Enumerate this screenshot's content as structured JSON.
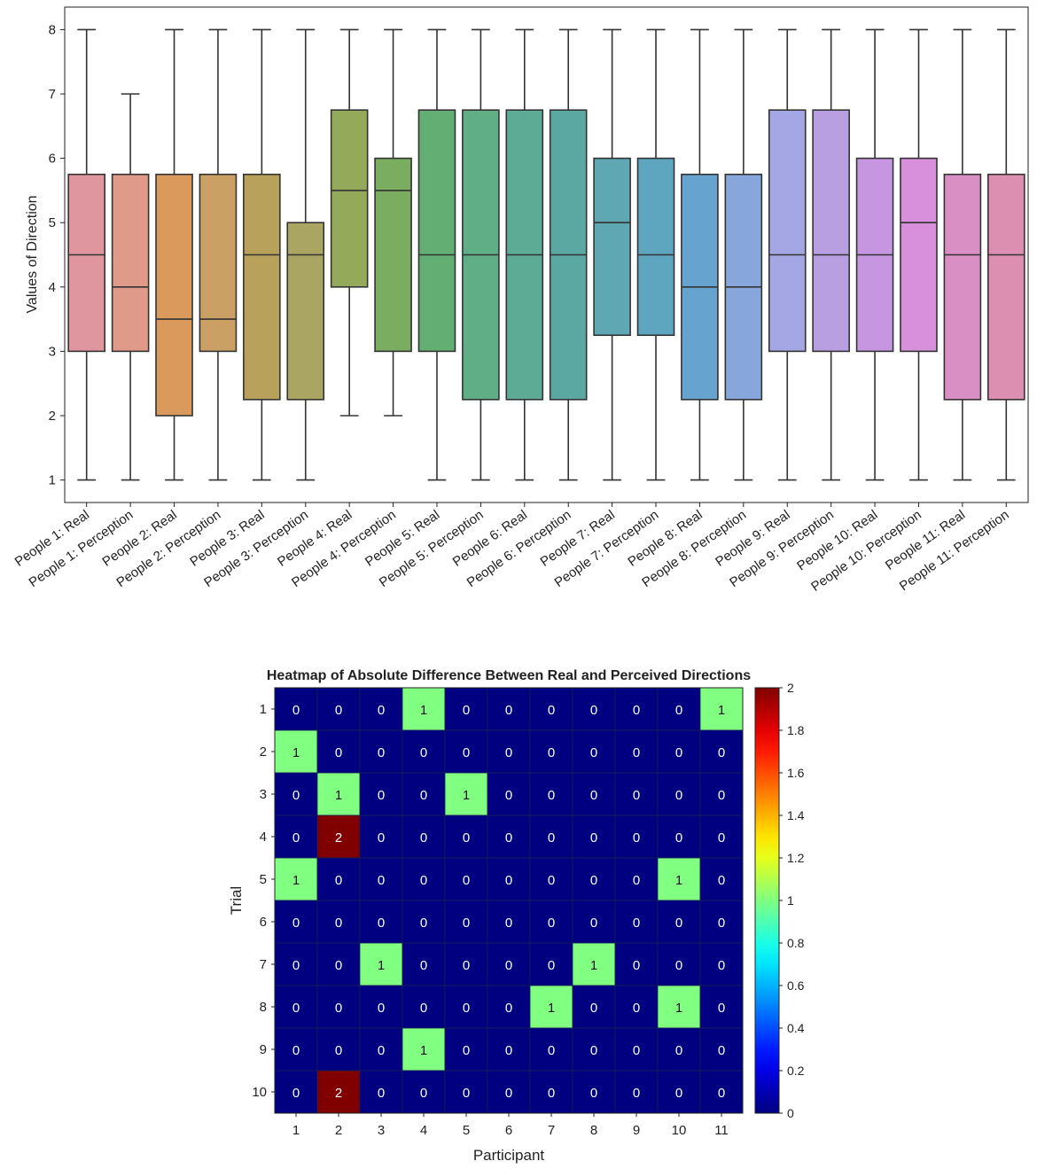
{
  "chart_data": [
    {
      "type": "box",
      "title": "",
      "xlabel": "",
      "ylabel": "Values of Direction",
      "ylim": [
        0.65,
        8.35
      ],
      "yticks": [
        1,
        2,
        3,
        4,
        5,
        6,
        7,
        8
      ],
      "categories": [
        "People 1: Real",
        "People 1: Perception",
        "People 2: Real",
        "People 2: Perception",
        "People 3: Real",
        "People 3: Perception",
        "People 4: Real",
        "People 4: Perception",
        "People 5: Real",
        "People 5: Perception",
        "People 6: Real",
        "People 6: Perception",
        "People 7: Real",
        "People 7: Perception",
        "People 8: Real",
        "People 8: Perception",
        "People 9: Real",
        "People 9: Perception",
        "People 10: Real",
        "People 10: Perception",
        "People 11: Real",
        "People 11: Perception"
      ],
      "boxes": [
        {
          "min": 1,
          "q1": 3,
          "median": 4.5,
          "q3": 5.75,
          "max": 8,
          "color": "#e0969f"
        },
        {
          "min": 1,
          "q1": 3,
          "median": 4,
          "q3": 5.75,
          "max": 7,
          "color": "#e09a8a"
        },
        {
          "min": 1,
          "q1": 2,
          "median": 3.5,
          "q3": 5.75,
          "max": 8,
          "color": "#d99a5c"
        },
        {
          "min": 1,
          "q1": 3,
          "median": 3.5,
          "q3": 5.75,
          "max": 8,
          "color": "#cba064"
        },
        {
          "min": 1,
          "q1": 2.25,
          "median": 4.5,
          "q3": 5.75,
          "max": 8,
          "color": "#b8a15a"
        },
        {
          "min": 1,
          "q1": 2.25,
          "median": 4.5,
          "q3": 5,
          "max": 8,
          "color": "#aaa562"
        },
        {
          "min": 2,
          "q1": 4,
          "median": 5.5,
          "q3": 6.75,
          "max": 8,
          "color": "#95a95a"
        },
        {
          "min": 2,
          "q1": 3,
          "median": 5.5,
          "q3": 6,
          "max": 8,
          "color": "#7aad5f"
        },
        {
          "min": 1,
          "q1": 3,
          "median": 4.5,
          "q3": 6.75,
          "max": 8,
          "color": "#63ae72"
        },
        {
          "min": 1,
          "q1": 2.25,
          "median": 4.5,
          "q3": 6.75,
          "max": 8,
          "color": "#5fae86"
        },
        {
          "min": 1,
          "q1": 2.25,
          "median": 4.5,
          "q3": 6.75,
          "max": 8,
          "color": "#5dab95"
        },
        {
          "min": 1,
          "q1": 2.25,
          "median": 4.5,
          "q3": 6.75,
          "max": 8,
          "color": "#5ba8a3"
        },
        {
          "min": 1,
          "q1": 3.25,
          "median": 5,
          "q3": 6,
          "max": 8,
          "color": "#5ea7b3"
        },
        {
          "min": 1,
          "q1": 3.25,
          "median": 4.5,
          "q3": 6,
          "max": 8,
          "color": "#5ea6c0"
        },
        {
          "min": 1,
          "q1": 2.25,
          "median": 4,
          "q3": 5.75,
          "max": 8,
          "color": "#66a3cf"
        },
        {
          "min": 1,
          "q1": 2.25,
          "median": 4,
          "q3": 5.75,
          "max": 8,
          "color": "#86a6dc"
        },
        {
          "min": 1,
          "q1": 3,
          "median": 4.5,
          "q3": 6.75,
          "max": 8,
          "color": "#a4a7e3"
        },
        {
          "min": 1,
          "q1": 3,
          "median": 4.5,
          "q3": 6.75,
          "max": 8,
          "color": "#b79fe2"
        },
        {
          "min": 1,
          "q1": 3,
          "median": 4.5,
          "q3": 6,
          "max": 8,
          "color": "#c697e0"
        },
        {
          "min": 1,
          "q1": 3,
          "median": 5,
          "q3": 6,
          "max": 8,
          "color": "#d88fdc"
        },
        {
          "min": 1,
          "q1": 2.25,
          "median": 4.5,
          "q3": 5.75,
          "max": 8,
          "color": "#d98ec4"
        },
        {
          "min": 1,
          "q1": 2.25,
          "median": 4.5,
          "q3": 5.75,
          "max": 8,
          "color": "#dc8fb0"
        }
      ]
    },
    {
      "type": "heatmap",
      "title": "Heatmap of Absolute Difference Between Real and Perceived Directions",
      "xlabel": "Participant",
      "ylabel": "Trial",
      "x": [
        1,
        2,
        3,
        4,
        5,
        6,
        7,
        8,
        9,
        10,
        11
      ],
      "y": [
        1,
        2,
        3,
        4,
        5,
        6,
        7,
        8,
        9,
        10
      ],
      "values": [
        [
          0,
          0,
          0,
          1,
          0,
          0,
          0,
          0,
          0,
          0,
          1
        ],
        [
          1,
          0,
          0,
          0,
          0,
          0,
          0,
          0,
          0,
          0,
          0
        ],
        [
          0,
          1,
          0,
          0,
          1,
          0,
          0,
          0,
          0,
          0,
          0
        ],
        [
          0,
          2,
          0,
          0,
          0,
          0,
          0,
          0,
          0,
          0,
          0
        ],
        [
          1,
          0,
          0,
          0,
          0,
          0,
          0,
          0,
          0,
          1,
          0
        ],
        [
          0,
          0,
          0,
          0,
          0,
          0,
          0,
          0,
          0,
          0,
          0
        ],
        [
          0,
          0,
          1,
          0,
          0,
          0,
          0,
          1,
          0,
          0,
          0
        ],
        [
          0,
          0,
          0,
          0,
          0,
          0,
          1,
          0,
          0,
          1,
          0
        ],
        [
          0,
          0,
          0,
          1,
          0,
          0,
          0,
          0,
          0,
          0,
          0
        ],
        [
          0,
          2,
          0,
          0,
          0,
          0,
          0,
          0,
          0,
          0,
          0
        ]
      ],
      "colormap": "jet",
      "clim": [
        0,
        2
      ],
      "colorbar_ticks": [
        "0",
        "0.2",
        "0.4",
        "0.6",
        "0.8",
        "1",
        "1.2",
        "1.4",
        "1.6",
        "1.8",
        "2"
      ]
    }
  ]
}
